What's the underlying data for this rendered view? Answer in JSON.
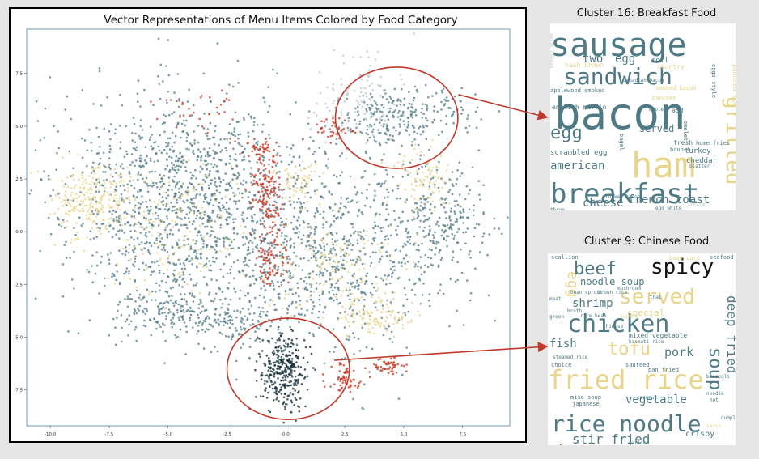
{
  "chart_data": {
    "type": "scatter",
    "title": "Vector Representations of Menu Items Colored by Food Category",
    "xlabel": "",
    "ylabel": "",
    "xlim": [
      -11,
      9.5
    ],
    "ylim": [
      -9.2,
      9.6
    ],
    "x_ticks": [
      -10.0,
      -7.5,
      -5.0,
      -2.5,
      0.0,
      2.5,
      5.0,
      7.5
    ],
    "x_tick_labels": [
      "-10.0",
      "-7.5",
      "-5.0",
      "-2.5",
      "0.0",
      "2.5",
      "5.0",
      "7.5"
    ],
    "y_ticks": [
      7.5,
      5.0,
      2.5,
      0.0,
      -2.5,
      -5.0,
      -7.5
    ],
    "y_tick_labels": [
      "7.5",
      "5.0",
      "2.5",
      "0.0",
      "-2.5",
      "-5.0",
      "-7.5"
    ],
    "grid": false,
    "series_colors": [
      "#4e7a85",
      "#e8d48a",
      "#c8331e",
      "#0f2a30",
      "#b9c7c4"
    ],
    "clusters": [
      {
        "color": "#4e7a85",
        "cx": -4.5,
        "cy": 1.5,
        "sx": 2.6,
        "sy": 2.6,
        "n": 1300
      },
      {
        "color": "#4e7a85",
        "cx": 1.5,
        "cy": -1.0,
        "sx": 2.6,
        "sy": 2.5,
        "n": 900
      },
      {
        "color": "#4e7a85",
        "cx": 6.5,
        "cy": 0.5,
        "sx": 1.2,
        "sy": 1.4,
        "n": 250
      },
      {
        "color": "#4e7a85",
        "cx": -5.0,
        "cy": -3.8,
        "sx": 1.2,
        "sy": 0.6,
        "n": 160
      },
      {
        "color": "#4e7a85",
        "cx": -1.8,
        "cy": -4.3,
        "sx": 1.1,
        "sy": 0.7,
        "n": 120
      },
      {
        "color": "#4e7a85",
        "cx": 5.2,
        "cy": 5.7,
        "sx": 1.3,
        "sy": 0.6,
        "n": 170
      },
      {
        "color": "#4e7a85",
        "cx": 4.2,
        "cy": 5.0,
        "sx": 0.9,
        "sy": 0.6,
        "n": 80
      },
      {
        "color": "#e8d48a",
        "cx": -8.3,
        "cy": 1.5,
        "sx": 0.8,
        "sy": 0.8,
        "n": 220
      },
      {
        "color": "#e8d48a",
        "cx": -5.0,
        "cy": 0.0,
        "sx": 1.5,
        "sy": 1.4,
        "n": 170
      },
      {
        "color": "#e8d48a",
        "cx": 2.0,
        "cy": -1.5,
        "sx": 1.5,
        "sy": 1.3,
        "n": 160
      },
      {
        "color": "#e8d48a",
        "cx": 4.0,
        "cy": -4.0,
        "sx": 0.8,
        "sy": 0.4,
        "n": 100
      },
      {
        "color": "#e8d48a",
        "cx": 6.0,
        "cy": 2.5,
        "sx": 0.6,
        "sy": 0.8,
        "n": 90
      },
      {
        "color": "#e8d48a",
        "cx": 0.5,
        "cy": 2.3,
        "sx": 0.5,
        "sy": 0.6,
        "n": 60
      },
      {
        "color": "#c8331e",
        "cx": -0.8,
        "cy": 1.5,
        "sx": 0.3,
        "sy": 1.1,
        "n": 150
      },
      {
        "color": "#c8331e",
        "cx": -0.5,
        "cy": -1.3,
        "sx": 0.4,
        "sy": 0.6,
        "n": 70
      },
      {
        "color": "#c8331e",
        "cx": 2.5,
        "cy": -6.9,
        "sx": 0.4,
        "sy": 0.3,
        "n": 60
      },
      {
        "color": "#c8331e",
        "cx": 4.4,
        "cy": -6.4,
        "sx": 0.3,
        "sy": 0.2,
        "n": 50
      },
      {
        "color": "#c8331e",
        "cx": -1.0,
        "cy": 3.9,
        "sx": 0.4,
        "sy": 0.3,
        "n": 40
      },
      {
        "color": "#c8331e",
        "cx": 2.0,
        "cy": 4.8,
        "sx": 0.4,
        "sy": 0.3,
        "n": 40
      },
      {
        "color": "#c8331e",
        "cx": -3.5,
        "cy": 5.8,
        "sx": 0.8,
        "sy": 0.5,
        "n": 30
      },
      {
        "color": "#0f2a30",
        "cx": -0.1,
        "cy": -6.7,
        "sx": 0.5,
        "sy": 0.9,
        "n": 320
      },
      {
        "color": "#b9c7c4",
        "cx": 2.8,
        "cy": 6.3,
        "sx": 0.9,
        "sy": 1.1,
        "n": 110
      }
    ],
    "annotations": [
      {
        "target": "Cluster 16: Breakfast Food",
        "ellipse_cx": 4.7,
        "ellipse_cy": 5.4,
        "ellipse_rx": 2.6,
        "ellipse_ry": 2.4,
        "color": "#c0392b"
      },
      {
        "target": "Cluster 9: Chinese Food",
        "ellipse_cx": 0.1,
        "ellipse_cy": -6.5,
        "ellipse_rx": 2.6,
        "ellipse_ry": 2.4,
        "color": "#c0392b"
      }
    ]
  },
  "wordclouds": [
    {
      "title": "Cluster 16: Breakfast Food",
      "words": [
        {
          "text": "sausage",
          "color": "#4e7a85",
          "weight": 1.0
        },
        {
          "text": "bacon",
          "color": "#4e7a85",
          "weight": 1.3
        },
        {
          "text": "sandwich",
          "color": "#4e7a85",
          "weight": 0.75
        },
        {
          "text": "ham",
          "color": "#e8d48a",
          "weight": 1.0
        },
        {
          "text": "breakfast",
          "color": "#4e7a85",
          "weight": 0.9
        },
        {
          "text": "egg",
          "color": "#4e7a85",
          "weight": 0.7
        },
        {
          "text": "grilled",
          "color": "#e8d48a",
          "weight": 0.55
        },
        {
          "text": "two",
          "color": "#4e7a85",
          "weight": 0.35
        },
        {
          "text": "egg",
          "color": "#4e7a85",
          "weight": 0.35
        },
        {
          "text": "served",
          "color": "#4e7a85",
          "weight": 0.3
        },
        {
          "text": "american",
          "color": "#4e7a85",
          "weight": 0.32
        },
        {
          "text": "cheese",
          "color": "#4e7a85",
          "weight": 0.3
        },
        {
          "text": "french toast",
          "color": "#4e7a85",
          "weight": 0.3
        },
        {
          "text": "english muffin",
          "color": "#4e7a85",
          "weight": 0.18
        },
        {
          "text": "hash brown",
          "color": "#e8d48a",
          "weight": 0.14
        },
        {
          "text": "scrambled egg",
          "color": "#4e7a85",
          "weight": 0.16
        },
        {
          "text": "turkey",
          "color": "#4e7a85",
          "weight": 0.15
        },
        {
          "text": "cheddar",
          "color": "#4e7a85",
          "weight": 0.14
        },
        {
          "text": "poached egg",
          "color": "#e8d48a",
          "weight": 0.13
        },
        {
          "text": "fresh",
          "color": "#4e7a85",
          "weight": 0.12
        },
        {
          "text": "roll",
          "color": "#4e7a85",
          "weight": 0.14
        },
        {
          "text": "country",
          "color": "#e8d48a",
          "weight": 0.12
        },
        {
          "text": "applewood smoked",
          "color": "#4e7a85",
          "weight": 0.1
        },
        {
          "text": "smoked bacon",
          "color": "#e8d48a",
          "weight": 0.1
        },
        {
          "text": "home fries",
          "color": "#4e7a85",
          "weight": 0.11
        },
        {
          "text": "brunch",
          "color": "#4e7a85",
          "weight": 0.1
        },
        {
          "text": "bagel",
          "color": "#4e7a85",
          "weight": 0.1
        },
        {
          "text": "add",
          "color": "#4e7a85",
          "weight": 0.12
        },
        {
          "text": "omelet",
          "color": "#4e7a85",
          "weight": 0.1
        },
        {
          "text": "pancake",
          "color": "#e8d48a",
          "weight": 0.1
        },
        {
          "text": "turkey bacon",
          "color": "#4e7a85",
          "weight": 0.09
        },
        {
          "text": "choice",
          "color": "#b9c7c4",
          "weight": 0.09
        },
        {
          "text": "egg white",
          "color": "#4e7a85",
          "weight": 0.08
        },
        {
          "text": "three",
          "color": "#4e7a85",
          "weight": 0.08
        },
        {
          "text": "platter",
          "color": "#4e7a85",
          "weight": 0.08
        },
        {
          "text": "eggs style",
          "color": "#4e7a85",
          "weight": 0.08
        },
        {
          "text": "swiss cheese",
          "color": "#b9c7c4",
          "weight": 0.07
        },
        {
          "text": "canadian bacon",
          "color": "#4e7a85",
          "weight": 0.07
        },
        {
          "text": "maple",
          "color": "#4e7a85",
          "weight": 0.07
        }
      ]
    },
    {
      "title": "Cluster 9: Chinese Food",
      "words": [
        {
          "text": "spicy",
          "color": "#111111",
          "weight": 0.75
        },
        {
          "text": "beef",
          "color": "#4e7a85",
          "weight": 0.65
        },
        {
          "text": "chicken",
          "color": "#4e7a85",
          "weight": 1.0
        },
        {
          "text": "served",
          "color": "#e8d48a",
          "weight": 0.7
        },
        {
          "text": "fried rice",
          "color": "#e8d48a",
          "weight": 1.0
        },
        {
          "text": "rice noodle",
          "color": "#4e7a85",
          "weight": 0.9
        },
        {
          "text": "tofu",
          "color": "#e8d48a",
          "weight": 0.6
        },
        {
          "text": "soup",
          "color": "#4e7a85",
          "weight": 0.7
        },
        {
          "text": "deep fried",
          "color": "#4e7a85",
          "weight": 0.55
        },
        {
          "text": "egg",
          "color": "#e8d48a",
          "weight": 0.5
        },
        {
          "text": "noodle soup",
          "color": "#4e7a85",
          "weight": 0.3
        },
        {
          "text": "shrimp",
          "color": "#4e7a85",
          "weight": 0.35
        },
        {
          "text": "fish",
          "color": "#4e7a85",
          "weight": 0.33
        },
        {
          "text": "pork",
          "color": "#4e7a85",
          "weight": 0.35
        },
        {
          "text": "vegetable",
          "color": "#4e7a85",
          "weight": 0.35
        },
        {
          "text": "stir fried",
          "color": "#4e7a85",
          "weight": 0.45
        },
        {
          "text": "special",
          "color": "#e8d48a",
          "weight": 0.22
        },
        {
          "text": "steamed",
          "color": "#4e7a85",
          "weight": 0.22
        },
        {
          "text": "crispy",
          "color": "#4e7a85",
          "weight": 0.2
        },
        {
          "text": "mixed vegetable",
          "color": "#4e7a85",
          "weight": 0.14
        },
        {
          "text": "sauteed",
          "color": "#4e7a85",
          "weight": 0.12
        },
        {
          "text": "pan fried",
          "color": "#4e7a85",
          "weight": 0.12
        },
        {
          "text": "miso soup",
          "color": "#4e7a85",
          "weight": 0.11
        },
        {
          "text": "japanese",
          "color": "#4e7a85",
          "weight": 0.1
        },
        {
          "text": "bean sprout",
          "color": "#4e7a85",
          "weight": 0.1
        },
        {
          "text": "brown rice",
          "color": "#4e7a85",
          "weight": 0.09
        },
        {
          "text": "mushroom",
          "color": "#4e7a85",
          "weight": 0.1
        },
        {
          "text": "scallion",
          "color": "#4e7a85",
          "weight": 0.1
        },
        {
          "text": "seafood",
          "color": "#4e7a85",
          "weight": 0.1
        },
        {
          "text": "bean curd",
          "color": "#e8d48a",
          "weight": 0.1
        },
        {
          "text": "basmati rice",
          "color": "#4e7a85",
          "weight": 0.08
        },
        {
          "text": "steamed rice",
          "color": "#4e7a85",
          "weight": 0.08
        },
        {
          "text": "thai",
          "color": "#4e7a85",
          "weight": 0.09
        },
        {
          "text": "curry",
          "color": "#e8d48a",
          "weight": 0.1
        },
        {
          "text": "chinese",
          "color": "#4e7a85",
          "weight": 0.09
        },
        {
          "text": "broccoli",
          "color": "#4e7a85",
          "weight": 0.08
        },
        {
          "text": "garlic",
          "color": "#4e7a85",
          "weight": 0.08
        },
        {
          "text": "dumpling",
          "color": "#4e7a85",
          "weight": 0.08
        },
        {
          "text": "coconut",
          "color": "#4e7a85",
          "weight": 0.08
        },
        {
          "text": "hot",
          "color": "#4e7a85",
          "weight": 0.08
        },
        {
          "text": "choice",
          "color": "#4e7a85",
          "weight": 0.09
        },
        {
          "text": "green",
          "color": "#4e7a85",
          "weight": 0.08
        },
        {
          "text": "meat",
          "color": "#4e7a85",
          "weight": 0.07
        },
        {
          "text": "broth",
          "color": "#4e7a85",
          "weight": 0.07
        },
        {
          "text": "rice bean",
          "color": "#4e7a85",
          "weight": 0.07
        },
        {
          "text": "sauce",
          "color": "#e8d48a",
          "weight": 0.07
        },
        {
          "text": "noodle",
          "color": "#4e7a85",
          "weight": 0.07
        }
      ]
    }
  ]
}
